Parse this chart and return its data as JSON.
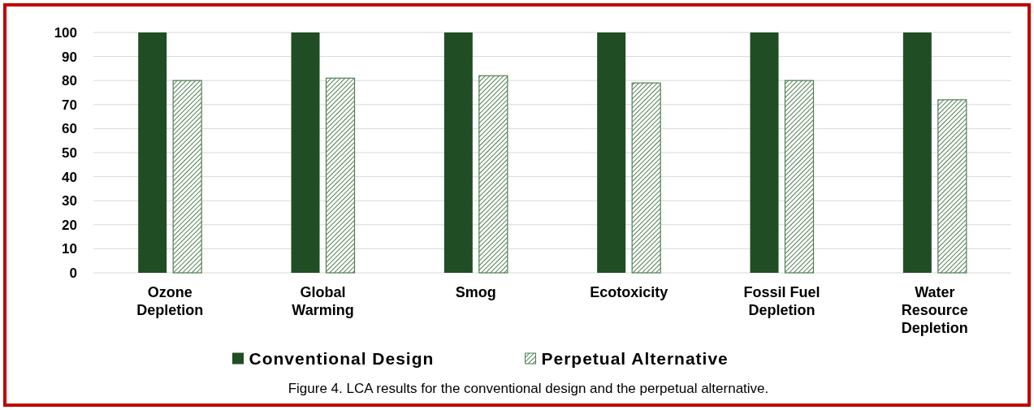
{
  "chart_data": {
    "type": "bar",
    "categories": [
      "Ozone\nDepletion",
      "Global\nWarming",
      "Smog",
      "Ecotoxicity",
      "Fossil Fuel\nDepletion",
      "Water\nResource\nDepletion"
    ],
    "series": [
      {
        "name": "Conventional Design",
        "color": "#214d24",
        "values": [
          100,
          100,
          100,
          100,
          100,
          100
        ]
      },
      {
        "name": "Perpetual Alternative",
        "color": "#4f7f52",
        "values": [
          80,
          81,
          82,
          79,
          80,
          72
        ]
      }
    ],
    "ylim": [
      0,
      100
    ],
    "yticks": [
      0,
      10,
      20,
      30,
      40,
      50,
      60,
      70,
      80,
      90,
      100
    ],
    "grid": "y",
    "legend": "bottom",
    "annotations": [
      "Figure 4. LCA results for the conventional design and the perpetual alternative."
    ]
  }
}
